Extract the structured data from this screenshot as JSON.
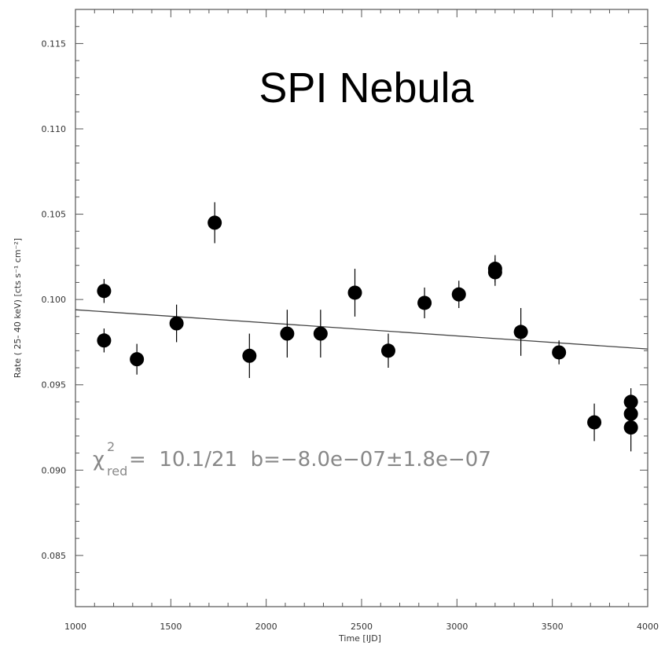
{
  "chart_data": {
    "type": "scatter",
    "title": "SPI Nebula",
    "xlabel": "Time [IJD]",
    "ylabel": "Rate (  25-   40 keV) [cts s⁻¹ cm⁻²]",
    "xlim": [
      1000,
      4000
    ],
    "ylim": [
      0.082,
      0.117
    ],
    "xticks": [
      1000,
      1500,
      2000,
      2500,
      3000,
      3500,
      4000
    ],
    "xtick_labels": [
      "1000",
      "1500",
      "2000",
      "2500",
      "3000",
      "3500",
      "4000"
    ],
    "yticks": [
      0.085,
      0.09,
      0.095,
      0.1,
      0.105,
      0.11,
      0.115
    ],
    "ytick_labels": [
      "0.085",
      "0.090",
      "0.095",
      "0.100",
      "0.105",
      "0.110",
      "0.115"
    ],
    "grid": false,
    "points": [
      {
        "x": 1150,
        "y": 0.1005,
        "err": 0.0007
      },
      {
        "x": 1150,
        "y": 0.0976,
        "err": 0.0007
      },
      {
        "x": 1322,
        "y": 0.0965,
        "err": 0.0009
      },
      {
        "x": 1530,
        "y": 0.0986,
        "err": 0.0011
      },
      {
        "x": 1730,
        "y": 0.1045,
        "err": 0.0012
      },
      {
        "x": 1912,
        "y": 0.0967,
        "err": 0.0013
      },
      {
        "x": 2110,
        "y": 0.098,
        "err": 0.0014
      },
      {
        "x": 2285,
        "y": 0.098,
        "err": 0.0014
      },
      {
        "x": 2465,
        "y": 0.1004,
        "err": 0.0014
      },
      {
        "x": 2640,
        "y": 0.097,
        "err": 0.001
      },
      {
        "x": 2830,
        "y": 0.0998,
        "err": 0.0009
      },
      {
        "x": 3010,
        "y": 0.1003,
        "err": 0.0008
      },
      {
        "x": 3200,
        "y": 0.1018,
        "err": 0.0008
      },
      {
        "x": 3200,
        "y": 0.1016,
        "err": 0.0008
      },
      {
        "x": 3335,
        "y": 0.0981,
        "err": 0.0014
      },
      {
        "x": 3535,
        "y": 0.0969,
        "err": 0.0007
      },
      {
        "x": 3720,
        "y": 0.0928,
        "err": 0.0011
      },
      {
        "x": 3912,
        "y": 0.094,
        "err": 0.0008
      },
      {
        "x": 3912,
        "y": 0.0933,
        "err": 0.0009
      },
      {
        "x": 3912,
        "y": 0.0925,
        "err": 0.0014
      }
    ],
    "fit_line": {
      "x": [
        1000,
        4000
      ],
      "y": [
        0.0994,
        0.0971
      ]
    },
    "annotation": {
      "chi_symbol": "χ",
      "chi_sup": "2",
      "chi_sub": "red",
      "text": "=  10.1/21  b=−8.0e−07±1.8e−07"
    },
    "colors": {
      "points": "#000000",
      "line": "#444444",
      "axis": "#555555",
      "annotation": "#888888"
    }
  }
}
